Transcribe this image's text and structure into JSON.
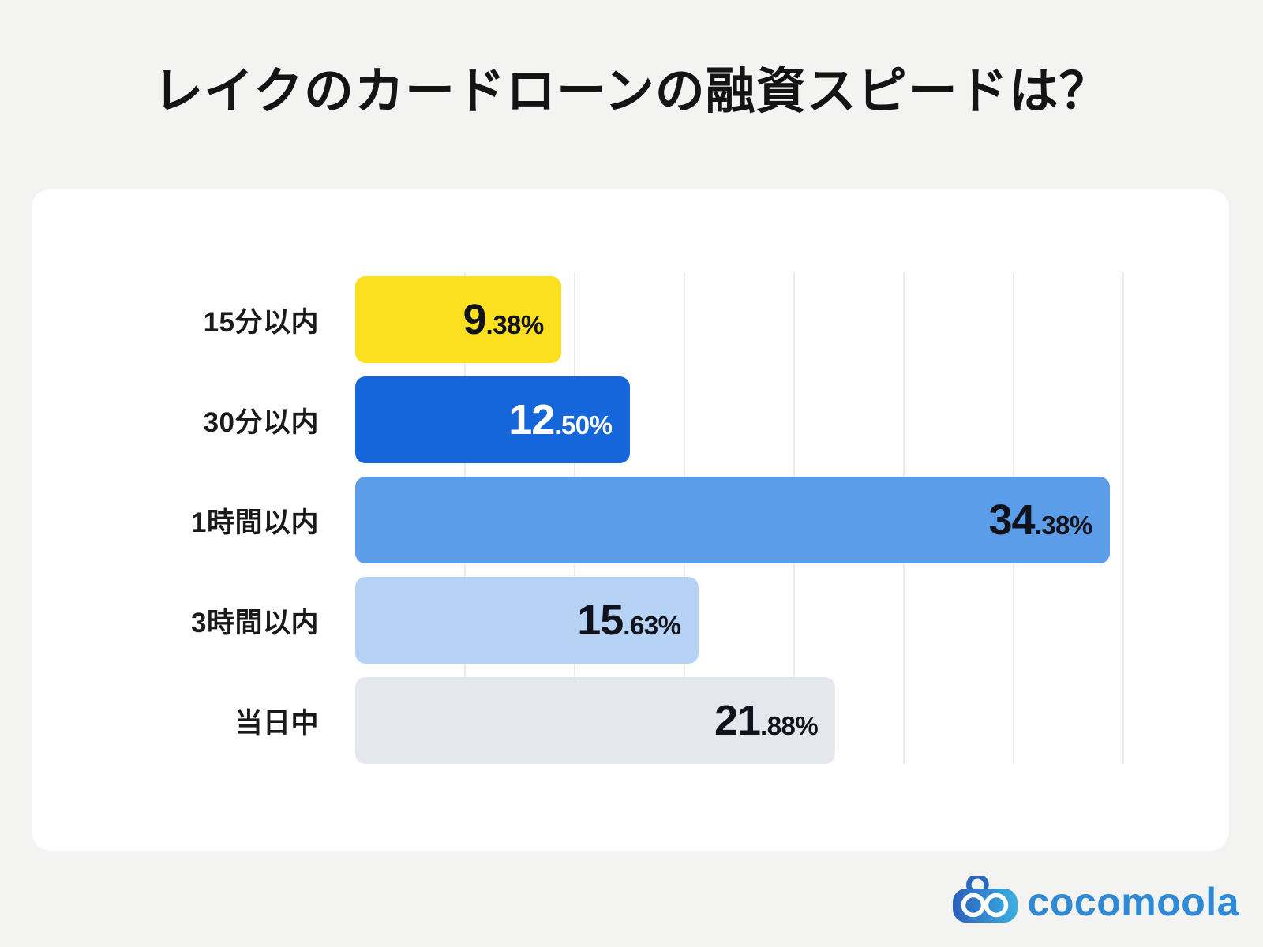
{
  "page": {
    "title": "レイクのカードローンの融資スピードは？",
    "background_color": "#F3F3F2",
    "card_color": "#FFFFFF"
  },
  "chart_data": {
    "type": "bar",
    "orientation": "horizontal",
    "title": "レイクのカードローンの融資スピードは？",
    "categories": [
      "15分以内",
      "30分以内",
      "1時間以内",
      "3時間以内",
      "当日中"
    ],
    "values": [
      9.38,
      12.5,
      34.38,
      15.63,
      21.88
    ],
    "value_labels": [
      "9.38%",
      "12.50%",
      "34.38%",
      "15.63%",
      "21.88%"
    ],
    "unit": "%",
    "xlim": [
      0,
      35
    ],
    "gridline_step_pct": 5,
    "grid": true,
    "legend": false,
    "gridline_color": "#ECECEC",
    "bar_colors": [
      "#FCDF1E",
      "#1565DB",
      "#5C9DE9",
      "#B6D3F5",
      "#E4E8EE"
    ],
    "value_text_colors": [
      "#10131B",
      "#FFFFFF",
      "#10131B",
      "#10131B",
      "#10131B"
    ],
    "category_text_color": "#1A1A1A"
  },
  "logo": {
    "text": "cocomoola",
    "icon": "cocomoola-mascot-icon",
    "icon_color_dark": "#2B63BE",
    "icon_color_light": "#3BB0E1",
    "text_color": "#3089D4"
  }
}
